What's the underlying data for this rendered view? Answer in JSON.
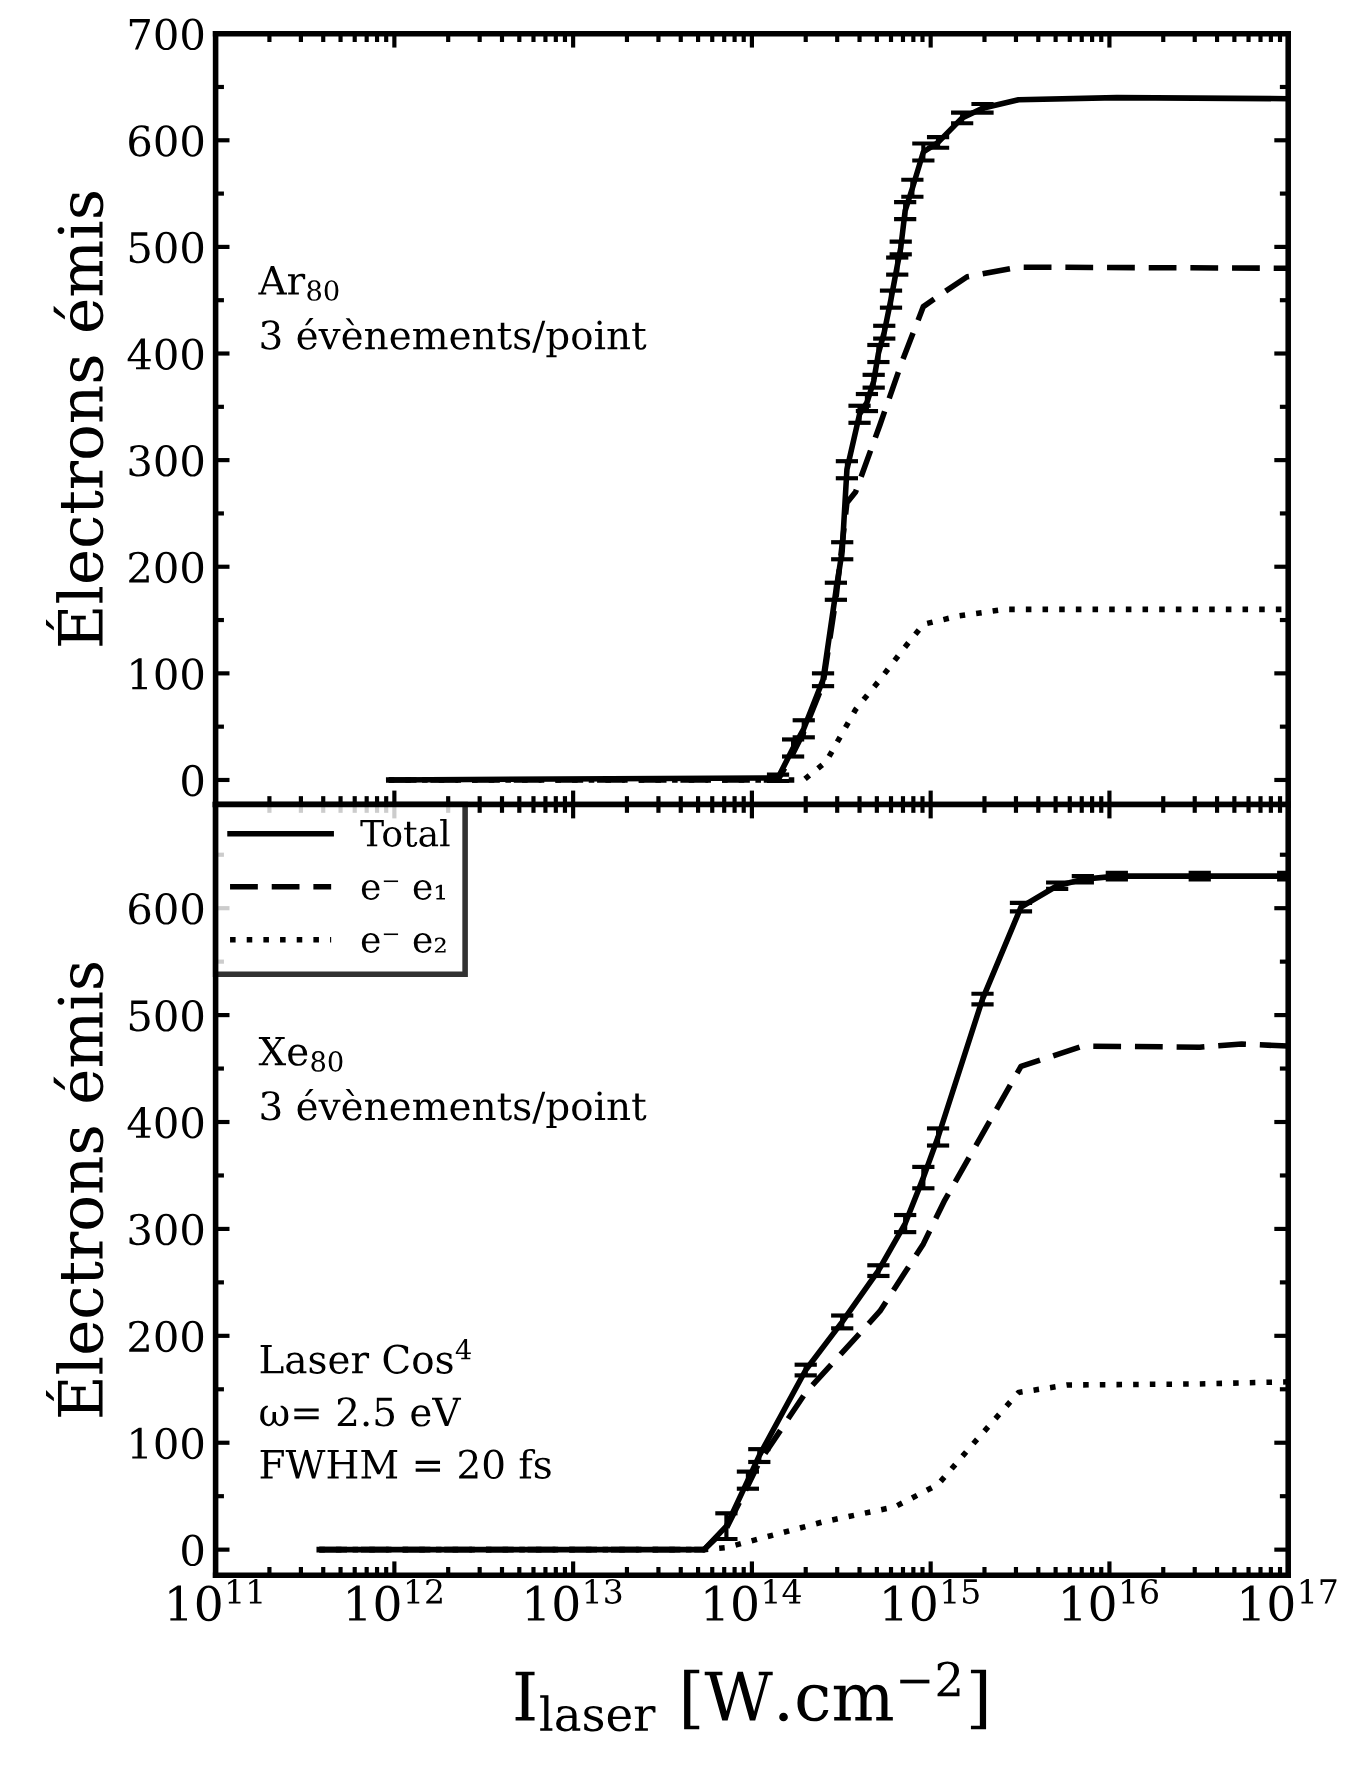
{
  "chart_data": [
    {
      "type": "line",
      "ylabel": "Électrons émis",
      "log": "x",
      "xlim": [
        100000000000.0,
        1e+17
      ],
      "ylim": [
        -23,
        700
      ],
      "yticks": [
        0,
        100,
        200,
        300,
        400,
        500,
        600,
        700
      ],
      "tick_labels": "y",
      "grid": false,
      "annotations": [
        "Ar$_{80}$\n3 évènements/point"
      ],
      "series": [
        {
          "color": "#000000",
          "line_style": "solid",
          "x": [
            930000000000.0,
            140000000000000.0,
            170000000000000.0,
            195000000000000.0,
            250000000000000.0,
            295000000000000.0,
            320000000000000.0,
            340000000000000.0,
            400000000000000.0,
            440000000000000.0,
            480000000000000.0,
            510000000000000.0,
            550000000000000.0,
            600000000000000.0,
            650000000000000.0,
            680000000000000.0,
            720000000000000.0,
            790000000000000.0,
            910000000000000.0,
            1100000000000000.0,
            1500000000000000.0,
            1950000000000000.0,
            3100000000000000.0,
            1.1e+16,
            1e+17
          ],
          "values": [
            0,
            2,
            30,
            48,
            94,
            177,
            215,
            291,
            343,
            354,
            374,
            400,
            420,
            451,
            482,
            499,
            534,
            555,
            589,
            598,
            621,
            630,
            638,
            640,
            639
          ],
          "errors": [
            null,
            3,
            8,
            8,
            6,
            8,
            8,
            8,
            8,
            8,
            6,
            8,
            6,
            8,
            8,
            6,
            8,
            8,
            8,
            5,
            5,
            4,
            null,
            null,
            null
          ]
        },
        {
          "color": "#000000",
          "line_style": "dashed",
          "x": [
            930000000000.0,
            140000000000000.0,
            170000000000000.0,
            195000000000000.0,
            250000000000000.0,
            295000000000000.0,
            340000000000000.0,
            380000000000000.0,
            520000000000000.0,
            690000000000000.0,
            910000000000000.0,
            1200000000000000.0,
            1600000000000000.0,
            3100000000000000.0,
            1e+17
          ],
          "values": [
            0,
            0,
            25,
            45,
            90,
            170,
            260,
            270,
            333,
            392,
            444,
            458,
            472,
            481,
            480
          ]
        },
        {
          "color": "#000000",
          "line_style": "dotted",
          "x": [
            930000000000.0,
            140000000000000.0,
            195000000000000.0,
            260000000000000.0,
            380000000000000.0,
            520000000000000.0,
            690000000000000.0,
            910000000000000.0,
            1450000000000000.0,
            2600000000000000.0,
            1e+17
          ],
          "values": [
            0,
            0,
            0,
            17,
            66,
            94,
            121,
            146,
            154,
            160,
            160
          ]
        }
      ]
    },
    {
      "type": "line",
      "xlabel": "I$_{laser}$ [W.cm$^{−2}$]",
      "ylabel": "Électrons émis",
      "log": "x",
      "xlim": [
        100000000000.0,
        1e+17
      ],
      "ylim": [
        -24,
        697
      ],
      "yticks": [
        0,
        100,
        200,
        300,
        400,
        500,
        600
      ],
      "xticks": [
        {
          "value": 100000000000.0,
          "label": "10$^{11}$"
        },
        {
          "value": 1000000000000.0,
          "label": "10$^{12}$"
        },
        {
          "value": 10000000000000.0,
          "label": "10$^{13}$"
        },
        {
          "value": 100000000000000.0,
          "label": "10$^{14}$"
        },
        {
          "value": 1000000000000000.0,
          "label": "10$^{15}$"
        },
        {
          "value": 1e+16,
          "label": "10$^{16}$"
        },
        {
          "value": 1e+17,
          "label": "10$^{17}$"
        }
      ],
      "grid": false,
      "legend": "top left",
      "annotations": [
        "Xe$_{80}$\n3 évènements/point",
        "Laser Cos$^{4}$\nω= 2.5 eV\nFWHM = 20 fs"
      ],
      "series": [
        {
          "name": "Total",
          "color": "#000000",
          "line_style": "solid",
          "x": [
            380000000000.0,
            54000000000000.0,
            72000000000000.0,
            95000000000000.0,
            110000000000000.0,
            200000000000000.0,
            320000000000000.0,
            510000000000000.0,
            720000000000000.0,
            910000000000000.0,
            1100000000000000.0,
            1950000000000000.0,
            3200000000000000.0,
            5100000000000000.0,
            7100000000000000.0,
            1.1e+16,
            3.2e+16,
            1e+17
          ],
          "values": [
            0,
            0,
            22,
            65,
            88,
            168,
            213,
            261,
            305,
            348,
            386,
            515,
            601,
            621,
            627,
            630,
            630,
            630
          ],
          "errors": [
            null,
            null,
            12,
            8,
            6,
            5,
            6,
            5,
            8,
            10,
            8,
            5,
            4,
            3,
            3,
            3,
            3,
            3
          ]
        },
        {
          "name": "e⁻ e₁",
          "color": "#000000",
          "line_style": "dashed",
          "x": [
            380000000000.0,
            54000000000000.0,
            72000000000000.0,
            95000000000000.0,
            110000000000000.0,
            200000000000000.0,
            520000000000000.0,
            910000000000000.0,
            1200000000000000.0,
            3200000000000000.0,
            7100000000000000.0,
            3.2e+16,
            5.5e+16,
            1e+17
          ],
          "values": [
            0,
            0,
            20,
            60,
            82,
            147,
            223,
            286,
            327,
            452,
            471,
            470,
            473,
            471
          ]
        },
        {
          "name": "e⁻ e₂",
          "color": "#000000",
          "line_style": "dotted",
          "x": [
            380000000000.0,
            54000000000000.0,
            72000000000000.0,
            250000000000000.0,
            630000000000000.0,
            1100000000000000.0,
            1750000000000000.0,
            3100000000000000.0,
            5800000000000000.0,
            3.2e+16,
            1e+17
          ],
          "values": [
            0,
            0,
            2,
            26,
            40,
            61,
            100,
            147,
            154,
            155,
            157
          ]
        }
      ]
    }
  ]
}
